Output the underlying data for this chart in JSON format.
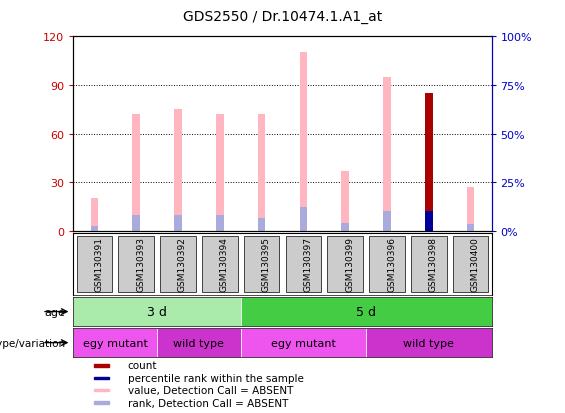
{
  "title": "GDS2550 / Dr.10474.1.A1_at",
  "samples": [
    "GSM130391",
    "GSM130393",
    "GSM130392",
    "GSM130394",
    "GSM130395",
    "GSM130397",
    "GSM130399",
    "GSM130396",
    "GSM130398",
    "GSM130400"
  ],
  "pink_bar_heights": [
    20,
    72,
    75,
    72,
    72,
    110,
    37,
    95,
    85,
    27
  ],
  "blue_bar_heights": [
    3,
    10,
    10,
    10,
    8,
    15,
    5,
    12,
    12,
    4
  ],
  "red_bar_height": [
    0,
    0,
    0,
    0,
    0,
    0,
    0,
    0,
    85,
    0
  ],
  "dark_blue_bar_height": [
    0,
    0,
    0,
    0,
    0,
    0,
    0,
    0,
    12,
    0
  ],
  "ylim_left": [
    0,
    120
  ],
  "ylim_right": [
    0,
    100
  ],
  "yticks_left": [
    0,
    30,
    60,
    90,
    120
  ],
  "yticks_right": [
    0,
    25,
    50,
    75,
    100
  ],
  "ytick_labels_left": [
    "0",
    "30",
    "60",
    "90",
    "120"
  ],
  "ytick_labels_right": [
    "0%",
    "25%",
    "50%",
    "75%",
    "100%"
  ],
  "age_groups": [
    {
      "label": "3 d",
      "start": 0,
      "end": 4,
      "color": "#AAEAAA"
    },
    {
      "label": "5 d",
      "start": 4,
      "end": 10,
      "color": "#44CC44"
    }
  ],
  "genotype_groups": [
    {
      "label": "egy mutant",
      "start": 0,
      "end": 2,
      "color": "#EE55EE"
    },
    {
      "label": "wild type",
      "start": 2,
      "end": 4,
      "color": "#CC33CC"
    },
    {
      "label": "egy mutant",
      "start": 4,
      "end": 7,
      "color": "#EE55EE"
    },
    {
      "label": "wild type",
      "start": 7,
      "end": 10,
      "color": "#CC33CC"
    }
  ],
  "legend_items": [
    {
      "label": "count",
      "color": "#AA0000"
    },
    {
      "label": "percentile rank within the sample",
      "color": "#000099"
    },
    {
      "label": "value, Detection Call = ABSENT",
      "color": "#FFB6C1"
    },
    {
      "label": "rank, Detection Call = ABSENT",
      "color": "#AAAADD"
    }
  ],
  "pink_color": "#FFB6C1",
  "blue_color": "#AAAADD",
  "red_color": "#AA0000",
  "dark_blue_color": "#000099",
  "bar_width": 0.18,
  "left_tick_color": "#CC0000",
  "right_tick_color": "#0000CC",
  "background_color": "#ffffff",
  "age_label": "age",
  "genotype_label": "genotype/variation"
}
